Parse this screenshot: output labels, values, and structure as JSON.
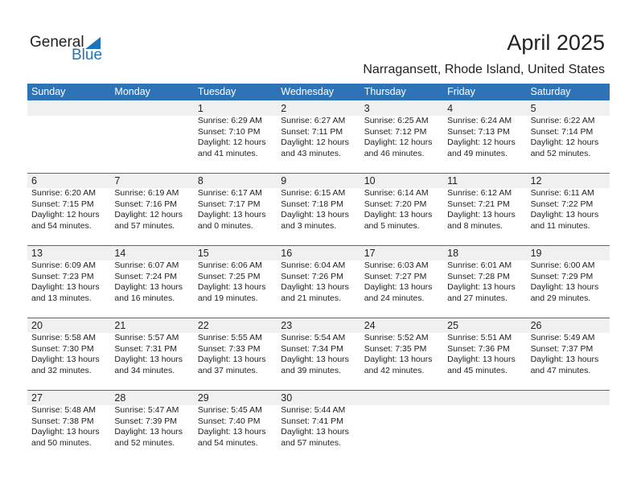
{
  "logo": {
    "general": "General",
    "blue": "Blue"
  },
  "header": {
    "title": "April 2025",
    "subtitle": "Narragansett, Rhode Island, United States"
  },
  "weekdays": [
    "Sunday",
    "Monday",
    "Tuesday",
    "Wednesday",
    "Thursday",
    "Friday",
    "Saturday"
  ],
  "weeks": [
    [
      null,
      null,
      {
        "day": "1",
        "sunrise": "Sunrise: 6:29 AM",
        "sunset": "Sunset: 7:10 PM",
        "daylight1": "Daylight: 12 hours",
        "daylight2": "and 41 minutes."
      },
      {
        "day": "2",
        "sunrise": "Sunrise: 6:27 AM",
        "sunset": "Sunset: 7:11 PM",
        "daylight1": "Daylight: 12 hours",
        "daylight2": "and 43 minutes."
      },
      {
        "day": "3",
        "sunrise": "Sunrise: 6:25 AM",
        "sunset": "Sunset: 7:12 PM",
        "daylight1": "Daylight: 12 hours",
        "daylight2": "and 46 minutes."
      },
      {
        "day": "4",
        "sunrise": "Sunrise: 6:24 AM",
        "sunset": "Sunset: 7:13 PM",
        "daylight1": "Daylight: 12 hours",
        "daylight2": "and 49 minutes."
      },
      {
        "day": "5",
        "sunrise": "Sunrise: 6:22 AM",
        "sunset": "Sunset: 7:14 PM",
        "daylight1": "Daylight: 12 hours",
        "daylight2": "and 52 minutes."
      }
    ],
    [
      {
        "day": "6",
        "sunrise": "Sunrise: 6:20 AM",
        "sunset": "Sunset: 7:15 PM",
        "daylight1": "Daylight: 12 hours",
        "daylight2": "and 54 minutes."
      },
      {
        "day": "7",
        "sunrise": "Sunrise: 6:19 AM",
        "sunset": "Sunset: 7:16 PM",
        "daylight1": "Daylight: 12 hours",
        "daylight2": "and 57 minutes."
      },
      {
        "day": "8",
        "sunrise": "Sunrise: 6:17 AM",
        "sunset": "Sunset: 7:17 PM",
        "daylight1": "Daylight: 13 hours",
        "daylight2": "and 0 minutes."
      },
      {
        "day": "9",
        "sunrise": "Sunrise: 6:15 AM",
        "sunset": "Sunset: 7:18 PM",
        "daylight1": "Daylight: 13 hours",
        "daylight2": "and 3 minutes."
      },
      {
        "day": "10",
        "sunrise": "Sunrise: 6:14 AM",
        "sunset": "Sunset: 7:20 PM",
        "daylight1": "Daylight: 13 hours",
        "daylight2": "and 5 minutes."
      },
      {
        "day": "11",
        "sunrise": "Sunrise: 6:12 AM",
        "sunset": "Sunset: 7:21 PM",
        "daylight1": "Daylight: 13 hours",
        "daylight2": "and 8 minutes."
      },
      {
        "day": "12",
        "sunrise": "Sunrise: 6:11 AM",
        "sunset": "Sunset: 7:22 PM",
        "daylight1": "Daylight: 13 hours",
        "daylight2": "and 11 minutes."
      }
    ],
    [
      {
        "day": "13",
        "sunrise": "Sunrise: 6:09 AM",
        "sunset": "Sunset: 7:23 PM",
        "daylight1": "Daylight: 13 hours",
        "daylight2": "and 13 minutes."
      },
      {
        "day": "14",
        "sunrise": "Sunrise: 6:07 AM",
        "sunset": "Sunset: 7:24 PM",
        "daylight1": "Daylight: 13 hours",
        "daylight2": "and 16 minutes."
      },
      {
        "day": "15",
        "sunrise": "Sunrise: 6:06 AM",
        "sunset": "Sunset: 7:25 PM",
        "daylight1": "Daylight: 13 hours",
        "daylight2": "and 19 minutes."
      },
      {
        "day": "16",
        "sunrise": "Sunrise: 6:04 AM",
        "sunset": "Sunset: 7:26 PM",
        "daylight1": "Daylight: 13 hours",
        "daylight2": "and 21 minutes."
      },
      {
        "day": "17",
        "sunrise": "Sunrise: 6:03 AM",
        "sunset": "Sunset: 7:27 PM",
        "daylight1": "Daylight: 13 hours",
        "daylight2": "and 24 minutes."
      },
      {
        "day": "18",
        "sunrise": "Sunrise: 6:01 AM",
        "sunset": "Sunset: 7:28 PM",
        "daylight1": "Daylight: 13 hours",
        "daylight2": "and 27 minutes."
      },
      {
        "day": "19",
        "sunrise": "Sunrise: 6:00 AM",
        "sunset": "Sunset: 7:29 PM",
        "daylight1": "Daylight: 13 hours",
        "daylight2": "and 29 minutes."
      }
    ],
    [
      {
        "day": "20",
        "sunrise": "Sunrise: 5:58 AM",
        "sunset": "Sunset: 7:30 PM",
        "daylight1": "Daylight: 13 hours",
        "daylight2": "and 32 minutes."
      },
      {
        "day": "21",
        "sunrise": "Sunrise: 5:57 AM",
        "sunset": "Sunset: 7:31 PM",
        "daylight1": "Daylight: 13 hours",
        "daylight2": "and 34 minutes."
      },
      {
        "day": "22",
        "sunrise": "Sunrise: 5:55 AM",
        "sunset": "Sunset: 7:33 PM",
        "daylight1": "Daylight: 13 hours",
        "daylight2": "and 37 minutes."
      },
      {
        "day": "23",
        "sunrise": "Sunrise: 5:54 AM",
        "sunset": "Sunset: 7:34 PM",
        "daylight1": "Daylight: 13 hours",
        "daylight2": "and 39 minutes."
      },
      {
        "day": "24",
        "sunrise": "Sunrise: 5:52 AM",
        "sunset": "Sunset: 7:35 PM",
        "daylight1": "Daylight: 13 hours",
        "daylight2": "and 42 minutes."
      },
      {
        "day": "25",
        "sunrise": "Sunrise: 5:51 AM",
        "sunset": "Sunset: 7:36 PM",
        "daylight1": "Daylight: 13 hours",
        "daylight2": "and 45 minutes."
      },
      {
        "day": "26",
        "sunrise": "Sunrise: 5:49 AM",
        "sunset": "Sunset: 7:37 PM",
        "daylight1": "Daylight: 13 hours",
        "daylight2": "and 47 minutes."
      }
    ],
    [
      {
        "day": "27",
        "sunrise": "Sunrise: 5:48 AM",
        "sunset": "Sunset: 7:38 PM",
        "daylight1": "Daylight: 13 hours",
        "daylight2": "and 50 minutes."
      },
      {
        "day": "28",
        "sunrise": "Sunrise: 5:47 AM",
        "sunset": "Sunset: 7:39 PM",
        "daylight1": "Daylight: 13 hours",
        "daylight2": "and 52 minutes."
      },
      {
        "day": "29",
        "sunrise": "Sunrise: 5:45 AM",
        "sunset": "Sunset: 7:40 PM",
        "daylight1": "Daylight: 13 hours",
        "daylight2": "and 54 minutes."
      },
      {
        "day": "30",
        "sunrise": "Sunrise: 5:44 AM",
        "sunset": "Sunset: 7:41 PM",
        "daylight1": "Daylight: 13 hours",
        "daylight2": "and 57 minutes."
      },
      null,
      null,
      null
    ]
  ],
  "colors": {
    "accent": "#2e73b5",
    "day_bar": "#f0f0f0",
    "logo_blue": "#1f73b7"
  }
}
